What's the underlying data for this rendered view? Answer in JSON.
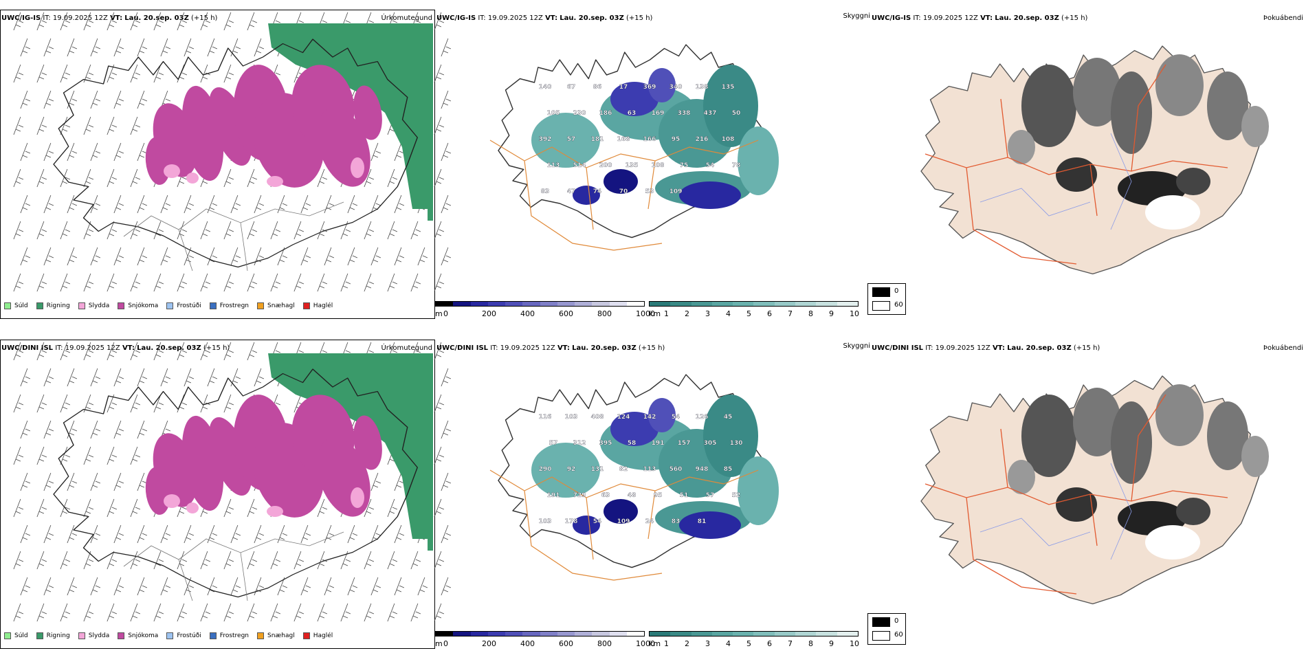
{
  "rows": [
    {
      "model": "UWC/IG-IS",
      "it_label": "IT:",
      "it_value": "19.09.2025 12Z",
      "vt_label": "VT:",
      "vt_value": "Lau. 20.sep. 03Z",
      "lead": "(+15 h)",
      "precip_title": "Úrkomutegund",
      "cloud_title": "Skyggni",
      "fog_title": "Þokuábendi",
      "cloud_labels": [
        "140",
        "67",
        "86",
        "17",
        "369",
        "340",
        "138",
        "135",
        "105",
        "230",
        "186",
        "63",
        "169",
        "338",
        "437",
        "50",
        "392",
        "57",
        "181",
        "168",
        "166",
        "95",
        "216",
        "108",
        "113",
        "514",
        "200",
        "135",
        "108",
        "75",
        "54",
        "78",
        "83",
        "47",
        "74",
        "70",
        "53",
        "109"
      ]
    },
    {
      "model": "UWC/DINI ISL",
      "it_label": "IT:",
      "it_value": "19.09.2025 12Z",
      "vt_label": "VT:",
      "vt_value": "Lau. 20.sep. 03Z",
      "lead": "(+15 h)",
      "precip_title": "Úrkomutegund",
      "cloud_title": "Skyggni",
      "fog_title": "Þokuábendi",
      "cloud_labels": [
        "116",
        "103",
        "408",
        "124",
        "142",
        "54",
        "126",
        "45",
        "57",
        "312",
        "395",
        "58",
        "191",
        "157",
        "305",
        "130",
        "290",
        "92",
        "131",
        "82",
        "113",
        "560",
        "948",
        "85",
        "191",
        "729",
        "63",
        "48",
        "95",
        "51",
        "57",
        "52",
        "103",
        "178",
        "54",
        "109",
        "24",
        "83",
        "81"
      ]
    }
  ],
  "precip_legend": [
    {
      "label": "Súld",
      "color": "#90ee90"
    },
    {
      "label": "Rigning",
      "color": "#3a9a6a"
    },
    {
      "label": "Slydda",
      "color": "#f3a6d8"
    },
    {
      "label": "Snjókoma",
      "color": "#c04aa0"
    },
    {
      "label": "Frostúði",
      "color": "#9dc3f0"
    },
    {
      "label": "Frostregn",
      "color": "#3a6fc0"
    },
    {
      "label": "Snæhagl",
      "color": "#f0a020"
    },
    {
      "label": "Haglél",
      "color": "#e02020"
    }
  ],
  "cloudbase_bar": {
    "unit": "m",
    "ticks": [
      "0",
      "200",
      "400",
      "600",
      "800",
      "1000"
    ],
    "colors": [
      "#000000",
      "#141480",
      "#2828a0",
      "#3c3cb0",
      "#5050b8",
      "#6868c0",
      "#8080c8",
      "#9898d0",
      "#b0b0d8",
      "#c8c8e0",
      "#e0e0f0",
      "#ffffff"
    ]
  },
  "visibility_bar": {
    "unit": "km",
    "ticks": [
      "1",
      "2",
      "3",
      "4",
      "5",
      "6",
      "7",
      "8",
      "9",
      "10"
    ],
    "colors": [
      "#2a7a78",
      "#3a8a86",
      "#4a9894",
      "#5aa6a2",
      "#6ab2ae",
      "#80bebb",
      "#98cac8",
      "#b0d6d4",
      "#c8e2e0",
      "#e4f0ef"
    ]
  },
  "fog_legend": [
    {
      "label": "0",
      "color": "#000000"
    },
    {
      "label": "60",
      "color": "#ffffff"
    }
  ]
}
